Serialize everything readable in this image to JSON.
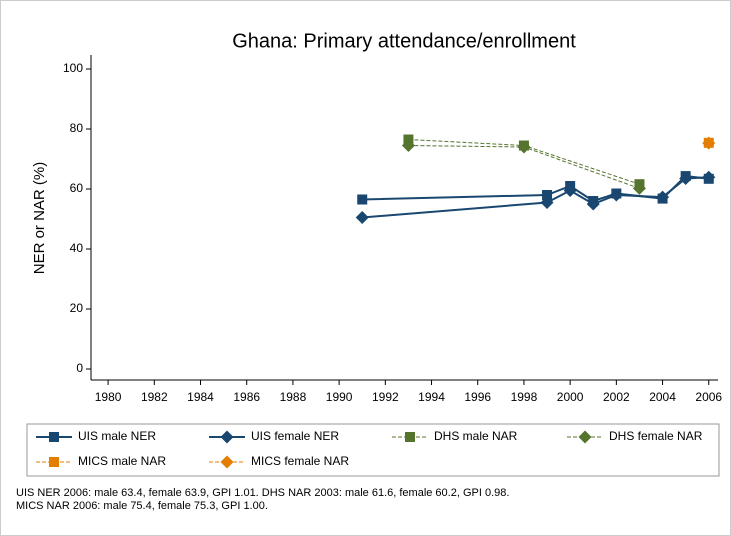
{
  "chart_data": {
    "type": "line",
    "title": "Ghana: Primary attendance/enrollment",
    "ylabel": "NER or NAR (%)",
    "xlim": [
      1979.26,
      2006.4
    ],
    "xticks": [
      1980,
      1982,
      1984,
      1986,
      1988,
      1990,
      1992,
      1994,
      1996,
      1998,
      2000,
      2002,
      2004,
      2006
    ],
    "ylim": [
      -3.67,
      104.67
    ],
    "yticks": [
      0,
      20,
      40,
      60,
      80,
      100
    ],
    "grid": false,
    "series": [
      {
        "name": "UIS male NER",
        "color": "#1a476f",
        "marker": "square",
        "line_style": "solid",
        "x": [
          1991,
          1999,
          2000,
          2001,
          2002,
          2004,
          2005,
          2006
        ],
        "values": [
          56.5,
          58,
          61,
          56,
          58.5,
          56.8,
          64.3,
          63.4
        ]
      },
      {
        "name": "UIS female NER",
        "color": "#1a476f",
        "marker": "diamond",
        "line_style": "solid",
        "x": [
          1991,
          1999,
          2000,
          2001,
          2002,
          2004,
          2005,
          2006
        ],
        "values": [
          50.5,
          55.5,
          59.5,
          55,
          58,
          57.3,
          63.5,
          63.9
        ]
      },
      {
        "name": "DHS male NAR",
        "color": "#55752f",
        "marker": "square",
        "line_style": "dash",
        "x": [
          1993,
          1998,
          2003
        ],
        "values": [
          76.5,
          74.5,
          61.6
        ]
      },
      {
        "name": "DHS female NAR",
        "color": "#55752f",
        "marker": "diamond",
        "line_style": "dash",
        "x": [
          1993,
          1998,
          2003
        ],
        "values": [
          74.5,
          74,
          60.2
        ]
      },
      {
        "name": "MICS male NAR",
        "color": "#e37e00",
        "marker": "square",
        "line_style": "dash",
        "x": [
          2006
        ],
        "values": [
          75.4
        ]
      },
      {
        "name": "MICS female NAR",
        "color": "#e37e00",
        "marker": "diamond",
        "line_style": "dash",
        "x": [
          2006
        ],
        "values": [
          75.3
        ]
      }
    ],
    "notes": [
      "UIS NER 2006: male 63.4, female 63.9, GPI 1.01. DHS NAR 2003: male 61.6, female 60.2, GPI 0.98.",
      "MICS NAR 2006: male 75.4, female 75.3, GPI 1.00."
    ]
  }
}
